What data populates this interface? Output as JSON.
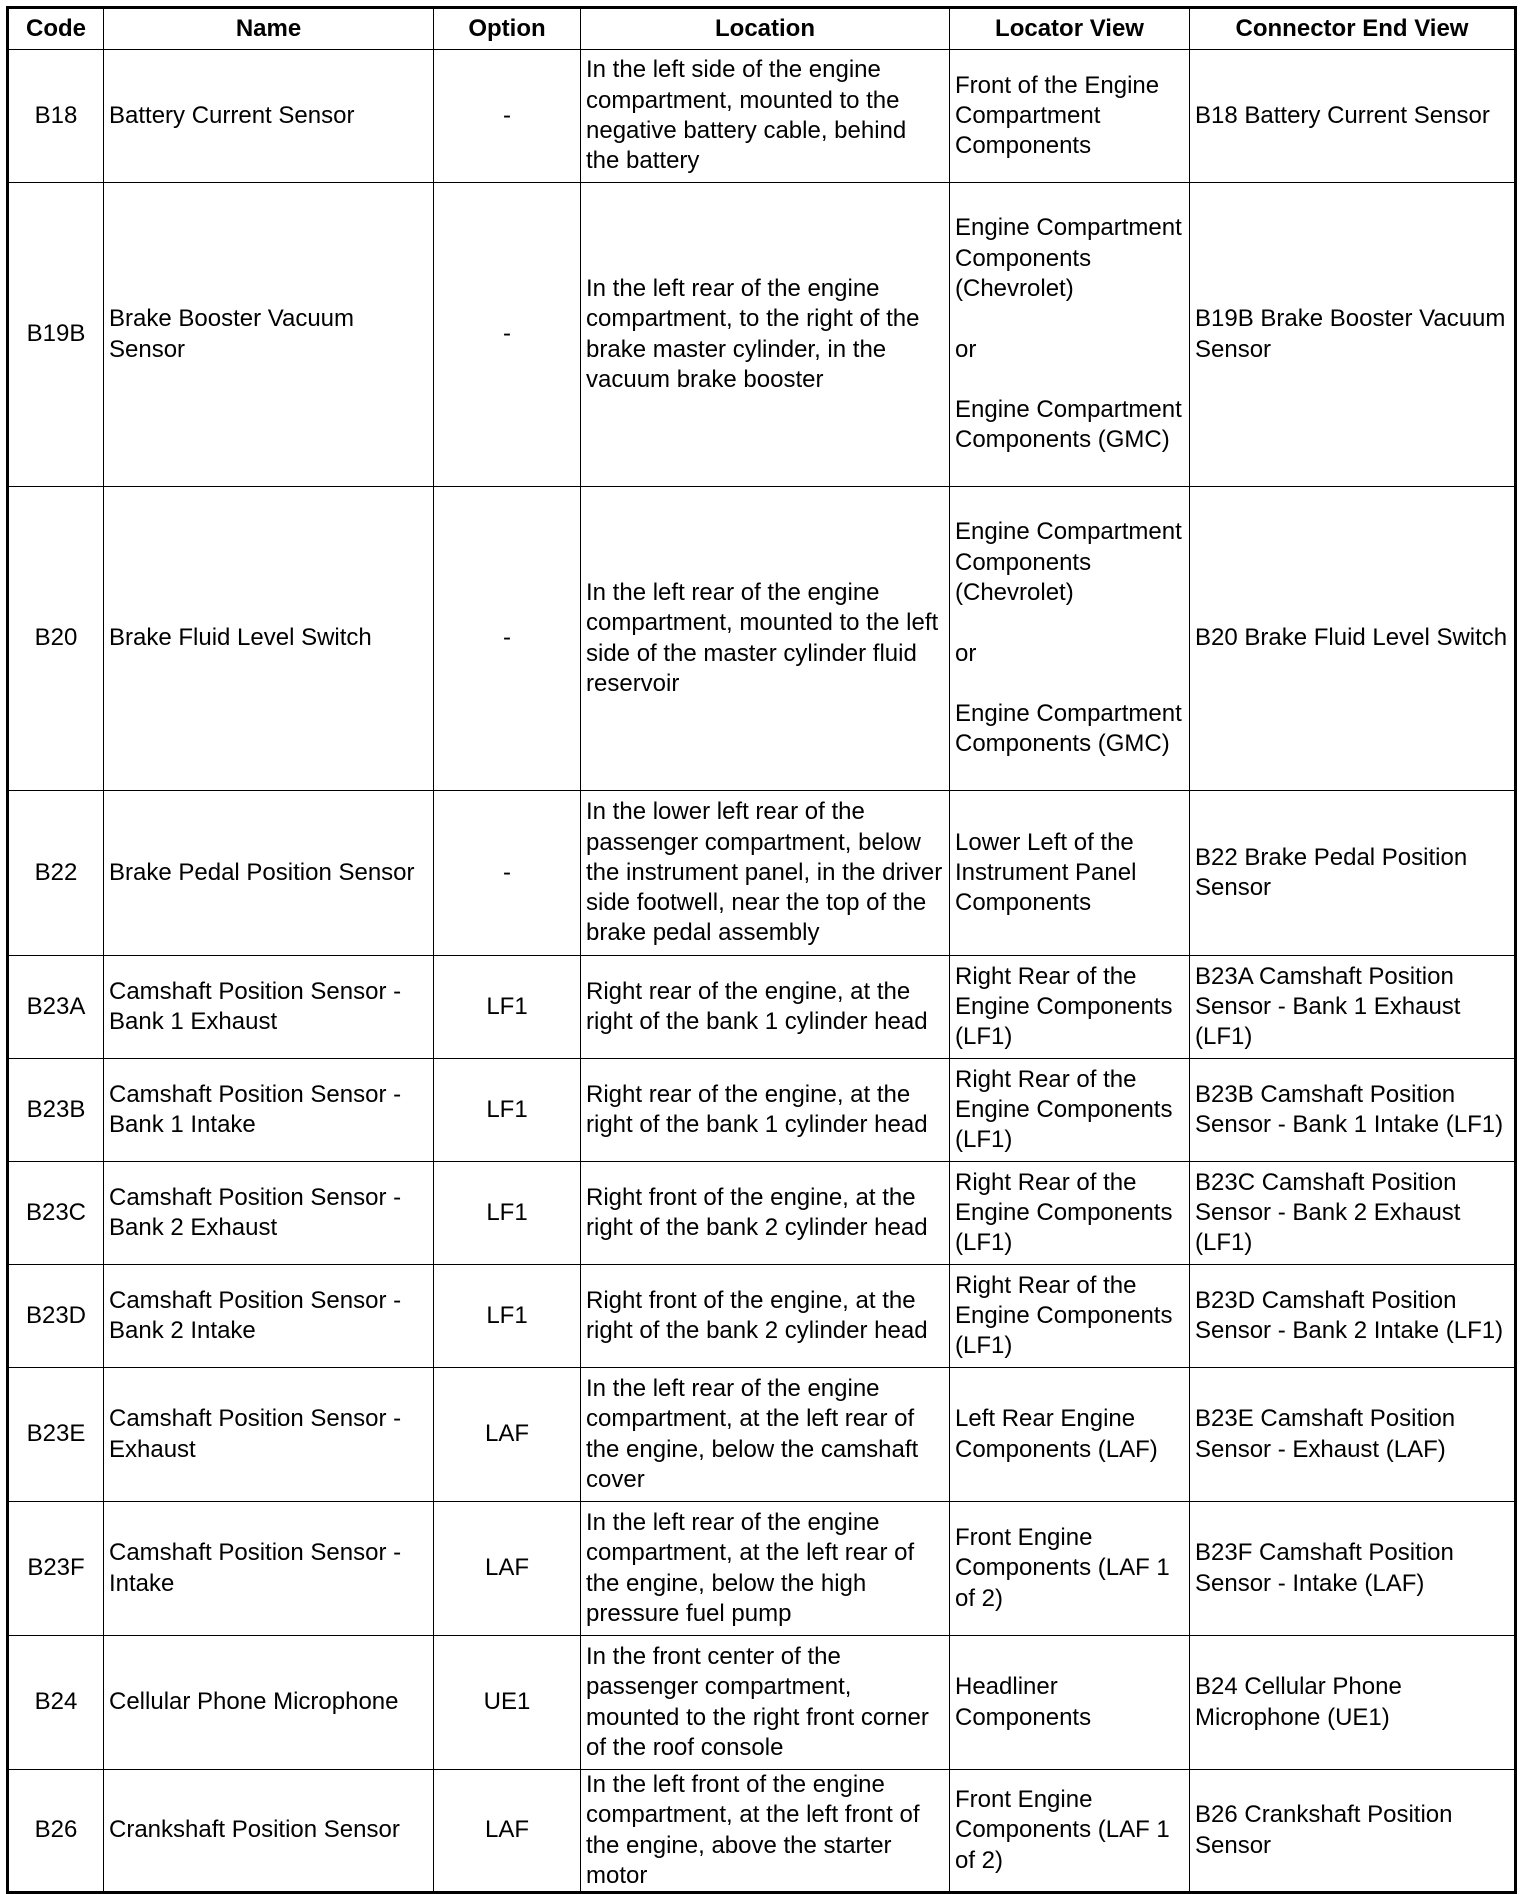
{
  "headers": [
    "Code",
    "Name",
    "Option",
    "Location",
    "Locator View",
    "Connector End View"
  ],
  "rows": [
    {
      "code": "B18",
      "name": "Battery Current Sensor",
      "option": "-",
      "location": "In the left side of the engine compartment, mounted to the negative battery cable, behind the battery",
      "locator": "Front of the Engine Compartment Components",
      "connector": "B18 Battery Current Sensor"
    },
    {
      "code": "B19B",
      "name": "Brake Booster Vacuum Sensor",
      "option": "-",
      "location": "In the left rear of the engine compartment, to the right of the brake master cylinder, in the vacuum brake booster",
      "locator": "Engine Compartment Components (Chevrolet)\n\nor\n\nEngine Compartment Components (GMC)",
      "connector": "B19B Brake Booster Vacuum Sensor"
    },
    {
      "code": "B20",
      "name": "Brake Fluid Level Switch",
      "option": "-",
      "location": "In the left rear of the engine compartment, mounted to the left side of the master cylinder fluid reservoir",
      "locator": "Engine Compartment Components (Chevrolet)\n\nor\n\nEngine Compartment Components (GMC)",
      "connector": "B20 Brake Fluid Level Switch"
    },
    {
      "code": "B22",
      "name": "Brake Pedal Position Sensor",
      "option": "-",
      "location": "In the lower left rear of the passenger compartment, below the instrument panel, in the driver side footwell, near the top of the brake pedal assembly",
      "locator": "Lower Left of the Instrument Panel Components",
      "connector": "B22 Brake Pedal Position Sensor"
    },
    {
      "code": "B23A",
      "name": "Camshaft Position Sensor - Bank 1 Exhaust",
      "option": "LF1",
      "location": "Right rear of the engine, at the right of the bank 1 cylinder head",
      "locator": "Right Rear of the Engine Components (LF1)",
      "connector": "B23A Camshaft Position Sensor - Bank 1 Exhaust (LF1)"
    },
    {
      "code": "B23B",
      "name": "Camshaft Position Sensor - Bank 1 Intake",
      "option": "LF1",
      "location": "Right rear of the engine, at the right of the bank 1 cylinder head",
      "locator": "Right Rear of the Engine Components (LF1)",
      "connector": "B23B Camshaft Position Sensor - Bank 1 Intake (LF1)"
    },
    {
      "code": "B23C",
      "name": "Camshaft Position Sensor - Bank 2 Exhaust",
      "option": "LF1",
      "location": "Right front of the engine, at the right of the bank 2 cylinder head",
      "locator": "Right Rear of the Engine Components (LF1)",
      "connector": "B23C Camshaft Position Sensor - Bank 2 Exhaust (LF1)"
    },
    {
      "code": "B23D",
      "name": "Camshaft Position Sensor - Bank 2 Intake",
      "option": "LF1",
      "location": "Right front of the engine, at the right of the bank 2 cylinder head",
      "locator": "Right Rear of the Engine Components (LF1)",
      "connector": "B23D Camshaft Position Sensor - Bank 2 Intake (LF1)"
    },
    {
      "code": "B23E",
      "name": "Camshaft Position Sensor - Exhaust",
      "option": "LAF",
      "location": "In the left rear of the engine compartment, at the left rear of the engine, below the camshaft cover",
      "locator": "Left Rear Engine Components (LAF)",
      "connector": "B23E Camshaft Position Sensor - Exhaust (LAF)"
    },
    {
      "code": "B23F",
      "name": "Camshaft Position Sensor - Intake",
      "option": "LAF",
      "location": "In the left rear of the engine compartment, at the left rear of the engine, below the high pressure fuel pump",
      "locator": "Front Engine Components (LAF 1 of 2)",
      "connector": "B23F Camshaft Position Sensor - Intake (LAF)"
    },
    {
      "code": "B24",
      "name": "Cellular Phone Microphone",
      "option": "UE1",
      "location": "In the front center of the passenger compartment, mounted to the right front corner of the roof console",
      "locator": "Headliner Components",
      "connector": "B24 Cellular Phone Microphone (UE1)"
    },
    {
      "code": "B26",
      "name": "Crankshaft Position Sensor",
      "option": "LAF",
      "location": "In the left front of the engine compartment, at the left front of the engine, above the starter motor",
      "locator": "Front Engine Components (LAF 1 of 2)",
      "connector": "B26 Crankshaft Position Sensor"
    }
  ]
}
